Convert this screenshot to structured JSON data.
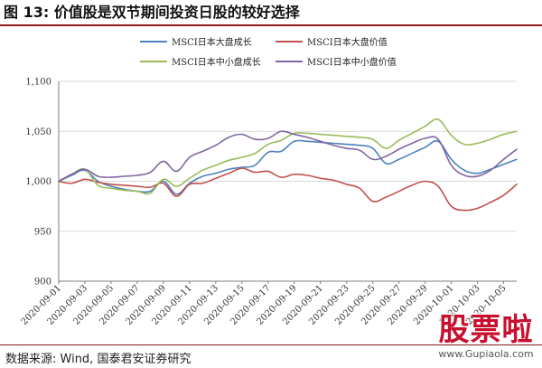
{
  "header": {
    "figure_title": "图 13:  价值股是双节期间投资日股的较好选择"
  },
  "footer": {
    "source": "数据来源:  Wind,  国泰君安证券研究"
  },
  "watermark": {
    "main": "股票啦",
    "sub": "www.Gupiaola.com"
  },
  "colors": {
    "title_rule": "#8b1a1a",
    "grid": "#d9d9d9",
    "axis": "#7f7f7f"
  },
  "chart_data": {
    "type": "line",
    "title": "",
    "xlabel": "",
    "ylabel": "",
    "ylim": [
      900,
      1100
    ],
    "yticks": [
      "900",
      "950",
      "1,000",
      "1,050",
      "1,100"
    ],
    "ytick_values": [
      900,
      950,
      1000,
      1050,
      1100
    ],
    "grid": "horizontal",
    "legend_position": "top",
    "x": [
      "2020-09-01",
      "2020-09-02",
      "2020-09-03",
      "2020-09-04",
      "2020-09-05",
      "2020-09-06",
      "2020-09-07",
      "2020-09-08",
      "2020-09-09",
      "2020-09-10",
      "2020-09-11",
      "2020-09-12",
      "2020-09-13",
      "2020-09-14",
      "2020-09-15",
      "2020-09-16",
      "2020-09-17",
      "2020-09-18",
      "2020-09-19",
      "2020-09-20",
      "2020-09-21",
      "2020-09-22",
      "2020-09-23",
      "2020-09-24",
      "2020-09-25",
      "2020-09-26",
      "2020-09-27",
      "2020-09-28",
      "2020-09-29",
      "2020-09-30",
      "2020-10-01",
      "2020-10-02",
      "2020-10-03",
      "2020-10-04",
      "2020-10-05",
      "2020-10-06"
    ],
    "xtick_labels": [
      "2020-09-01",
      "2020-09-03",
      "2020-09-05",
      "2020-09-07",
      "2020-09-09",
      "2020-09-11",
      "2020-09-13",
      "2020-09-15",
      "2020-09-17",
      "2020-09-19",
      "2020-09-21",
      "2020-09-23",
      "2020-09-25",
      "2020-09-27",
      "2020-09-29",
      "2020-10-01",
      "2020-10-03",
      "2020-10-05"
    ],
    "series": [
      {
        "name": "MSCI日本大盘成长",
        "color": "#4f81bd",
        "values": [
          1000,
          1006,
          1011,
          1000,
          995,
          992,
          990,
          990,
          1000,
          987,
          998,
          1005,
          1008,
          1012,
          1014,
          1016,
          1029,
          1030,
          1040,
          1040,
          1039,
          1038,
          1037,
          1036,
          1033,
          1018,
          1022,
          1028,
          1034,
          1040,
          1022,
          1011,
          1008,
          1012,
          1017,
          1022
        ]
      },
      {
        "name": "MSCI日本大盘价值",
        "color": "#c0504d",
        "values": [
          1000,
          998,
          1002,
          999,
          997,
          996,
          995,
          994,
          998,
          985,
          997,
          998,
          1003,
          1008,
          1013,
          1009,
          1010,
          1004,
          1007,
          1006,
          1003,
          1001,
          997,
          993,
          980,
          984,
          990,
          996,
          1000,
          995,
          975,
          971,
          973,
          979,
          986,
          997
        ]
      },
      {
        "name": "MSCI日本中小盘成长",
        "color": "#9bbb59",
        "values": [
          1000,
          1007,
          1012,
          996,
          993,
          991,
          990,
          988,
          1002,
          995,
          1003,
          1011,
          1016,
          1021,
          1024,
          1028,
          1037,
          1041,
          1048,
          1048,
          1047,
          1046,
          1045,
          1044,
          1042,
          1033,
          1041,
          1048,
          1055,
          1062,
          1046,
          1037,
          1038,
          1042,
          1047,
          1050
        ]
      },
      {
        "name": "MSCI日本中小盘价值",
        "color": "#8064a2",
        "values": [
          1000,
          1007,
          1012,
          1005,
          1004,
          1005,
          1006,
          1009,
          1020,
          1010,
          1024,
          1030,
          1036,
          1044,
          1047,
          1042,
          1043,
          1050,
          1047,
          1044,
          1040,
          1036,
          1033,
          1031,
          1022,
          1025,
          1032,
          1038,
          1043,
          1042,
          1016,
          1006,
          1005,
          1011,
          1022,
          1032
        ]
      }
    ]
  }
}
